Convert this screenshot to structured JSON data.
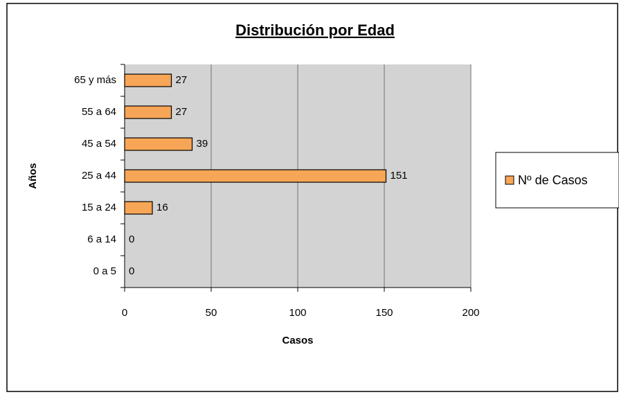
{
  "chart_data": {
    "type": "bar",
    "orientation": "horizontal",
    "title": "Distribución por Edad",
    "x_label": "Casos",
    "y_label": "Años",
    "categories": [
      "0 a 5",
      "6 a 14",
      "15 a 24",
      "25 a 44",
      "45 a 54",
      "55 a 64",
      "65 y más"
    ],
    "series": [
      {
        "name": "Nº de Casos",
        "color": "#f7a556",
        "values": [
          0,
          0,
          16,
          151,
          39,
          27,
          27
        ]
      }
    ],
    "xlim": [
      0,
      200
    ],
    "xticks": [
      0,
      50,
      100,
      150,
      200
    ],
    "grid": true,
    "legend": "right"
  }
}
